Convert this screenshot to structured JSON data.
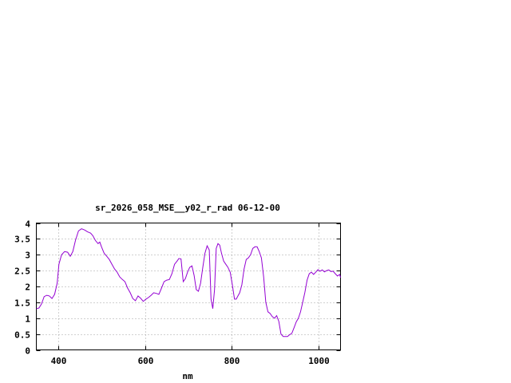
{
  "chart_data": {
    "type": "line",
    "title": "sr_2026_058_MSE__y02_r_rad 06-12-00",
    "xlabel": "nm",
    "ylabel": "",
    "xlim": [
      350,
      1050
    ],
    "ylim": [
      0,
      4
    ],
    "x_ticks": [
      400,
      600,
      800,
      1000
    ],
    "x_tick_labels": [
      "400",
      "600",
      "800",
      "1000"
    ],
    "y_ticks": [
      0,
      0.5,
      1,
      1.5,
      2,
      2.5,
      3,
      3.5,
      4
    ],
    "y_tick_labels": [
      "0",
      "0.5",
      "1",
      "1.5",
      "2",
      "2.5",
      "3",
      "3.5",
      "4"
    ],
    "grid": true,
    "line_color": "#9400d3",
    "series": [
      {
        "x": [
          350,
          356,
          362,
          368,
          374,
          380,
          386,
          392,
          398,
          402,
          408,
          415,
          422,
          428,
          434,
          440,
          447,
          454,
          461,
          468,
          475,
          480,
          486,
          492,
          496,
          500,
          506,
          512,
          518,
          524,
          530,
          536,
          542,
          548,
          554,
          560,
          566,
          572,
          578,
          584,
          590,
          596,
          602,
          608,
          614,
          620,
          626,
          632,
          638,
          644,
          650,
          656,
          662,
          668,
          674,
          678,
          683,
          688,
          693,
          698,
          703,
          708,
          713,
          718,
          723,
          728,
          733,
          738,
          743,
          748,
          752,
          756,
          760,
          764,
          768,
          772,
          776,
          781,
          786,
          791,
          796,
          801,
          806,
          810,
          814,
          818,
          823,
          828,
          833,
          838,
          843,
          848,
          853,
          858,
          863,
          868,
          873,
          878,
          883,
          888,
          893,
          898,
          903,
          908,
          913,
          918,
          923,
          928,
          933,
          938,
          943,
          948,
          953,
          958,
          963,
          968,
          973,
          978,
          983,
          988,
          993,
          998,
          1003,
          1008,
          1013,
          1018,
          1023,
          1028,
          1033,
          1038,
          1043,
          1048,
          1050
        ],
        "y": [
          1.3,
          1.32,
          1.45,
          1.68,
          1.72,
          1.7,
          1.62,
          1.75,
          2.1,
          2.7,
          3.0,
          3.1,
          3.08,
          2.95,
          3.1,
          3.45,
          3.75,
          3.82,
          3.78,
          3.72,
          3.68,
          3.6,
          3.45,
          3.35,
          3.4,
          3.25,
          3.05,
          2.95,
          2.85,
          2.7,
          2.55,
          2.45,
          2.3,
          2.22,
          2.15,
          1.95,
          1.8,
          1.62,
          1.55,
          1.7,
          1.63,
          1.53,
          1.6,
          1.65,
          1.72,
          1.8,
          1.78,
          1.75,
          1.95,
          2.15,
          2.2,
          2.22,
          2.4,
          2.7,
          2.8,
          2.88,
          2.87,
          2.15,
          2.25,
          2.45,
          2.6,
          2.65,
          2.35,
          1.9,
          1.85,
          2.1,
          2.6,
          3.05,
          3.28,
          3.15,
          1.6,
          1.3,
          1.9,
          3.2,
          3.35,
          3.3,
          3.05,
          2.8,
          2.7,
          2.6,
          2.45,
          2.05,
          1.6,
          1.6,
          1.7,
          1.8,
          2.05,
          2.55,
          2.85,
          2.9,
          3.0,
          3.2,
          3.25,
          3.25,
          3.1,
          2.9,
          2.3,
          1.5,
          1.2,
          1.15,
          1.05,
          1.0,
          1.08,
          0.9,
          0.5,
          0.42,
          0.42,
          0.42,
          0.48,
          0.52,
          0.7,
          0.88,
          1.0,
          1.2,
          1.5,
          1.82,
          2.2,
          2.4,
          2.45,
          2.38,
          2.45,
          2.53,
          2.48,
          2.52,
          2.46,
          2.5,
          2.52,
          2.47,
          2.48,
          2.4,
          2.33,
          2.38,
          2.28
        ]
      }
    ]
  }
}
